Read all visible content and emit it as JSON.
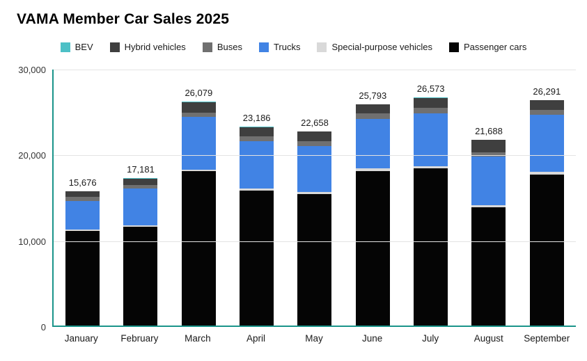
{
  "title": "VAMA Member Car Sales 2025",
  "colors": {
    "axis": "#1a948a",
    "grid": "#e3e3e3",
    "bev": "#4dc0c6",
    "hybrid": "#3f3f3f",
    "buses": "#707070",
    "trucks": "#4183e4",
    "special_purpose": "#d9d9d9",
    "passenger": "#050505"
  },
  "chart_data": {
    "type": "bar",
    "stacked": true,
    "title": "VAMA Member Car Sales 2025",
    "xlabel": "",
    "ylabel": "",
    "ylim": [
      0,
      30000
    ],
    "grid": true,
    "legend_position": "top",
    "y_ticks": [
      {
        "label": "30,000",
        "value": 30000
      },
      {
        "label": "20,000",
        "value": 20000
      },
      {
        "label": "10,000",
        "value": 10000
      },
      {
        "label": "0",
        "value": 0
      }
    ],
    "categories": [
      "January",
      "February",
      "March",
      "April",
      "May",
      "June",
      "July",
      "August",
      "September"
    ],
    "totals": [
      "15,676",
      "17,181",
      "26,079",
      "23,186",
      "22,658",
      "25,793",
      "26,573",
      "21,688",
      "26,291"
    ],
    "legend": [
      {
        "label": "BEV",
        "color": "#4dc0c6"
      },
      {
        "label": "Hybrid vehicles",
        "color": "#3f3f3f"
      },
      {
        "label": "Buses",
        "color": "#707070"
      },
      {
        "label": "Trucks",
        "color": "#4183e4"
      },
      {
        "label": "Special-purpose vehicles",
        "color": "#d9d9d9"
      },
      {
        "label": "Passenger cars",
        "color": "#050505"
      }
    ],
    "series": [
      {
        "name": "Passenger cars",
        "color": "#050505",
        "values": [
          11000,
          11500,
          18000,
          15700,
          15300,
          18000,
          18300,
          13800,
          17600
        ]
      },
      {
        "name": "Special-purpose vehicles",
        "color": "#d9d9d9",
        "values": [
          200,
          150,
          200,
          250,
          250,
          300,
          250,
          200,
          300
        ]
      },
      {
        "name": "Trucks",
        "color": "#4183e4",
        "values": [
          3300,
          4300,
          6100,
          5500,
          5400,
          5800,
          6200,
          5700,
          6700
        ]
      },
      {
        "name": "Buses",
        "color": "#707070",
        "values": [
          500,
          450,
          550,
          600,
          550,
          600,
          600,
          500,
          550
        ]
      },
      {
        "name": "Hybrid vehicles",
        "color": "#3f3f3f",
        "values": [
          650,
          750,
          1200,
          1100,
          1100,
          1050,
          1150,
          1450,
          1100
        ]
      },
      {
        "name": "BEV",
        "color": "#4dc0c6",
        "values": [
          26,
          31,
          29,
          36,
          58,
          43,
          73,
          38,
          41
        ]
      }
    ]
  }
}
